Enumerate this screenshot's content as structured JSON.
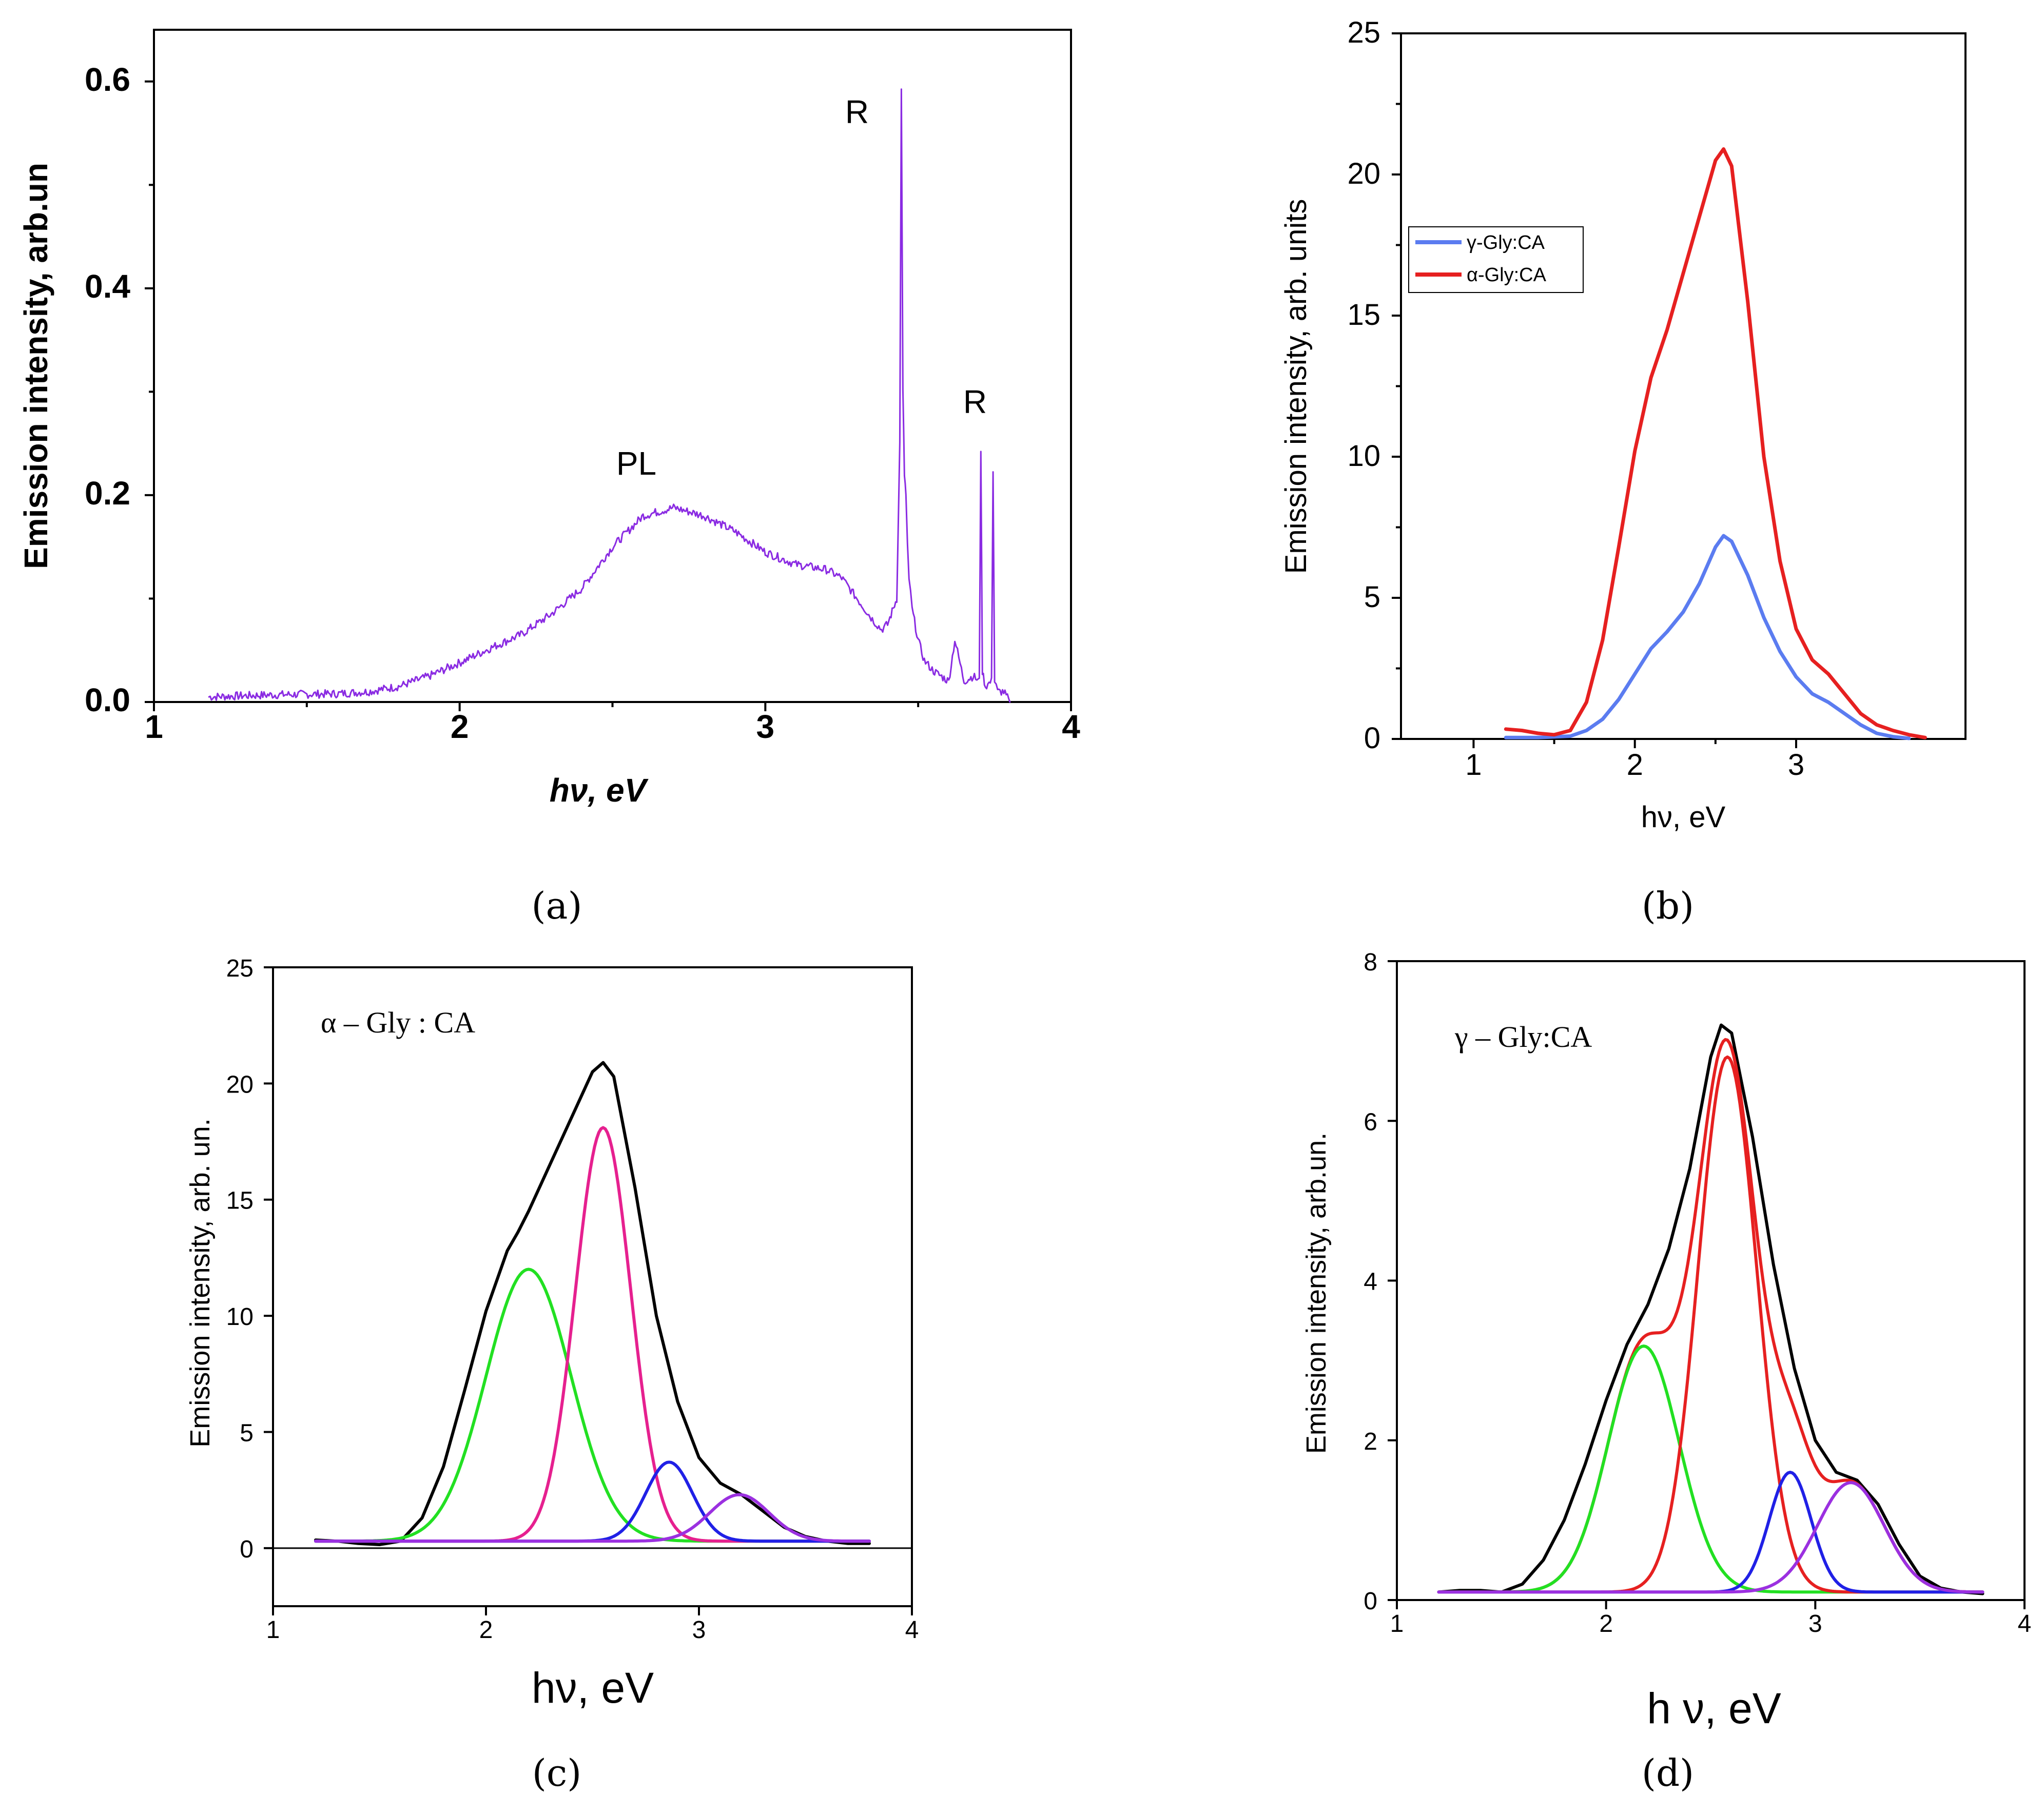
{
  "chart_data": [
    {
      "panel": "a",
      "panel_label": "(a)",
      "type": "line",
      "xlabel": "hν, eV",
      "ylabel": "Emission intensity, arb.un",
      "xlim": [
        1,
        4
      ],
      "ylim": [
        0,
        0.65
      ],
      "xticks": [
        1,
        2,
        3,
        4
      ],
      "yticks": [
        0.0,
        0.2,
        0.4,
        0.6
      ],
      "xtick_labels": [
        "1",
        "2",
        "3",
        "4"
      ],
      "ytick_labels": [
        "0.0",
        "0.2",
        "0.4",
        "0.6"
      ],
      "annotations": [
        {
          "text": "PL",
          "x": 2.6,
          "y": 0.215
        },
        {
          "text": "R",
          "x": 3.3,
          "y": 0.57
        },
        {
          "text": "R",
          "x": 3.67,
          "y": 0.28
        }
      ],
      "series": [
        {
          "name": "spectrum",
          "color": "#8a2be2",
          "noise": 0.004,
          "x": [
            1.18,
            1.4,
            1.6,
            1.7,
            1.8,
            1.9,
            2.0,
            2.1,
            2.2,
            2.3,
            2.4,
            2.5,
            2.6,
            2.7,
            2.8,
            2.9,
            3.0,
            3.1,
            3.2,
            3.25,
            3.3,
            3.35,
            3.38,
            3.4,
            3.43,
            3.44,
            3.445,
            3.45,
            3.455,
            3.46,
            3.465,
            3.47,
            3.48,
            3.5,
            3.52,
            3.55,
            3.6,
            3.62,
            3.65,
            3.68,
            3.7,
            3.705,
            3.71,
            3.72,
            3.74,
            3.745,
            3.75,
            3.76,
            3.78,
            3.8
          ],
          "y": [
            0.005,
            0.007,
            0.008,
            0.01,
            0.015,
            0.025,
            0.038,
            0.052,
            0.065,
            0.085,
            0.11,
            0.15,
            0.18,
            0.188,
            0.18,
            0.165,
            0.145,
            0.133,
            0.128,
            0.12,
            0.1,
            0.08,
            0.07,
            0.075,
            0.1,
            0.25,
            0.595,
            0.3,
            0.22,
            0.2,
            0.15,
            0.12,
            0.09,
            0.06,
            0.04,
            0.03,
            0.02,
            0.06,
            0.02,
            0.025,
            0.02,
            0.245,
            0.03,
            0.015,
            0.02,
            0.225,
            0.02,
            0.01,
            0.01,
            0.0
          ]
        }
      ]
    },
    {
      "panel": "b",
      "panel_label": "(b)",
      "type": "line",
      "xlabel": "hν, eV",
      "ylabel": "Emission intensity, arb. units",
      "xlim": [
        0.55,
        4.05
      ],
      "ylim": [
        0,
        25
      ],
      "xticks": [
        1,
        2,
        3
      ],
      "yticks": [
        0,
        5,
        10,
        15,
        20,
        25
      ],
      "xtick_labels": [
        "1",
        "2",
        "3"
      ],
      "ytick_labels": [
        "0",
        "5",
        "10",
        "15",
        "20",
        "25"
      ],
      "legend": {
        "position": "upper-left",
        "entries": [
          "γ-Gly:CA",
          "α-Gly:CA"
        ]
      },
      "series": [
        {
          "name": "γ-Gly:CA",
          "color": "#5b7cf0",
          "x": [
            1.2,
            1.4,
            1.6,
            1.7,
            1.8,
            1.9,
            2.0,
            2.1,
            2.2,
            2.3,
            2.4,
            2.5,
            2.55,
            2.6,
            2.7,
            2.8,
            2.9,
            3.0,
            3.1,
            3.2,
            3.3,
            3.4,
            3.5,
            3.6,
            3.7
          ],
          "y": [
            0.05,
            0.05,
            0.1,
            0.3,
            0.7,
            1.4,
            2.3,
            3.2,
            3.8,
            4.5,
            5.5,
            6.8,
            7.2,
            7.0,
            5.8,
            4.3,
            3.1,
            2.2,
            1.6,
            1.3,
            0.9,
            0.5,
            0.2,
            0.08,
            0.02
          ]
        },
        {
          "name": "α-Gly:CA",
          "color": "#e62020",
          "x": [
            1.2,
            1.3,
            1.4,
            1.5,
            1.6,
            1.7,
            1.8,
            1.9,
            2.0,
            2.1,
            2.2,
            2.3,
            2.4,
            2.5,
            2.55,
            2.6,
            2.7,
            2.8,
            2.9,
            3.0,
            3.1,
            3.2,
            3.3,
            3.4,
            3.5,
            3.6,
            3.7,
            3.8
          ],
          "y": [
            0.35,
            0.3,
            0.2,
            0.15,
            0.3,
            1.3,
            3.5,
            6.8,
            10.2,
            12.8,
            14.5,
            16.5,
            18.5,
            20.5,
            20.9,
            20.3,
            15.5,
            10.0,
            6.3,
            3.9,
            2.8,
            2.3,
            1.6,
            0.9,
            0.5,
            0.3,
            0.15,
            0.05
          ]
        }
      ]
    },
    {
      "panel": "c",
      "panel_label": "(c)",
      "type": "line",
      "xlabel": "hν, eV",
      "ylabel": "Emission intensity, arb. un.",
      "xlim": [
        1,
        4
      ],
      "ylim": [
        -2.5,
        25
      ],
      "xticks": [
        1,
        2,
        3,
        4
      ],
      "yticks": [
        0,
        5,
        10,
        15,
        20,
        25
      ],
      "xtick_labels": [
        "1",
        "2",
        "3",
        "4"
      ],
      "ytick_labels": [
        "0",
        "5",
        "10",
        "15",
        "20",
        "25"
      ],
      "annotation": "α – Gly : CA",
      "baseline": 0.3,
      "fit_range": [
        1.2,
        3.8
      ],
      "series": [
        {
          "name": "measured",
          "color": "#000000",
          "x": [
            1.2,
            1.3,
            1.4,
            1.5,
            1.6,
            1.7,
            1.8,
            1.9,
            2.0,
            2.1,
            2.15,
            2.2,
            2.3,
            2.4,
            2.5,
            2.55,
            2.6,
            2.7,
            2.8,
            2.9,
            3.0,
            3.1,
            3.2,
            3.3,
            3.4,
            3.5,
            3.6,
            3.7,
            3.8
          ],
          "y": [
            0.35,
            0.3,
            0.2,
            0.15,
            0.3,
            1.3,
            3.5,
            6.8,
            10.2,
            12.8,
            13.6,
            14.5,
            16.5,
            18.5,
            20.5,
            20.9,
            20.3,
            15.5,
            10.0,
            6.3,
            3.9,
            2.8,
            2.3,
            1.6,
            0.9,
            0.5,
            0.3,
            0.2,
            0.2
          ]
        },
        {
          "name": "peak-1",
          "color": "#22e022",
          "center": 2.2,
          "amplitude": 11.7,
          "sigma": 0.2
        },
        {
          "name": "peak-2",
          "color": "#e6208f",
          "center": 2.55,
          "amplitude": 17.8,
          "sigma": 0.13
        },
        {
          "name": "peak-3",
          "color": "#2020e6",
          "center": 2.86,
          "amplitude": 3.4,
          "sigma": 0.11
        },
        {
          "name": "peak-4",
          "color": "#9b30e0",
          "center": 3.19,
          "amplitude": 2.0,
          "sigma": 0.14
        }
      ]
    },
    {
      "panel": "d",
      "panel_label": "(d)",
      "type": "line",
      "xlabel": "h ν, eV",
      "ylabel": "Emission intensity, arb.un.",
      "xlim": [
        1,
        4
      ],
      "ylim": [
        0,
        8
      ],
      "xticks": [
        1,
        2,
        3,
        4
      ],
      "yticks": [
        0,
        2,
        4,
        6,
        8
      ],
      "xtick_labels": [
        "1",
        "2",
        "3",
        "4"
      ],
      "ytick_labels": [
        "0",
        "2",
        "4",
        "6",
        "8"
      ],
      "annotation": "γ – Gly:CA",
      "baseline": 0.1,
      "fit_range": [
        1.2,
        3.8
      ],
      "series": [
        {
          "name": "measured",
          "color": "#000000",
          "x": [
            1.2,
            1.3,
            1.4,
            1.5,
            1.6,
            1.7,
            1.8,
            1.9,
            2.0,
            2.1,
            2.2,
            2.3,
            2.4,
            2.5,
            2.55,
            2.6,
            2.7,
            2.8,
            2.9,
            3.0,
            3.1,
            3.2,
            3.3,
            3.4,
            3.45,
            3.5,
            3.6,
            3.7,
            3.8
          ],
          "y": [
            0.1,
            0.12,
            0.12,
            0.1,
            0.2,
            0.5,
            1.0,
            1.7,
            2.5,
            3.2,
            3.7,
            4.4,
            5.4,
            6.8,
            7.2,
            7.1,
            5.8,
            4.2,
            2.9,
            2.0,
            1.6,
            1.5,
            1.2,
            0.7,
            0.5,
            0.3,
            0.15,
            0.1,
            0.08
          ]
        },
        {
          "name": "fit-sum",
          "color": "#e62020",
          "sum_of_peaks": true
        },
        {
          "name": "peak-1",
          "color": "#22e022",
          "center": 2.18,
          "amplitude": 3.08,
          "sigma": 0.17
        },
        {
          "name": "peak-2",
          "color": "#e62020",
          "center": 2.58,
          "amplitude": 6.7,
          "sigma": 0.14
        },
        {
          "name": "peak-3",
          "color": "#2020e6",
          "center": 2.88,
          "amplitude": 1.5,
          "sigma": 0.1
        },
        {
          "name": "peak-4",
          "color": "#9b30e0",
          "center": 3.17,
          "amplitude": 1.37,
          "sigma": 0.16
        }
      ]
    }
  ]
}
